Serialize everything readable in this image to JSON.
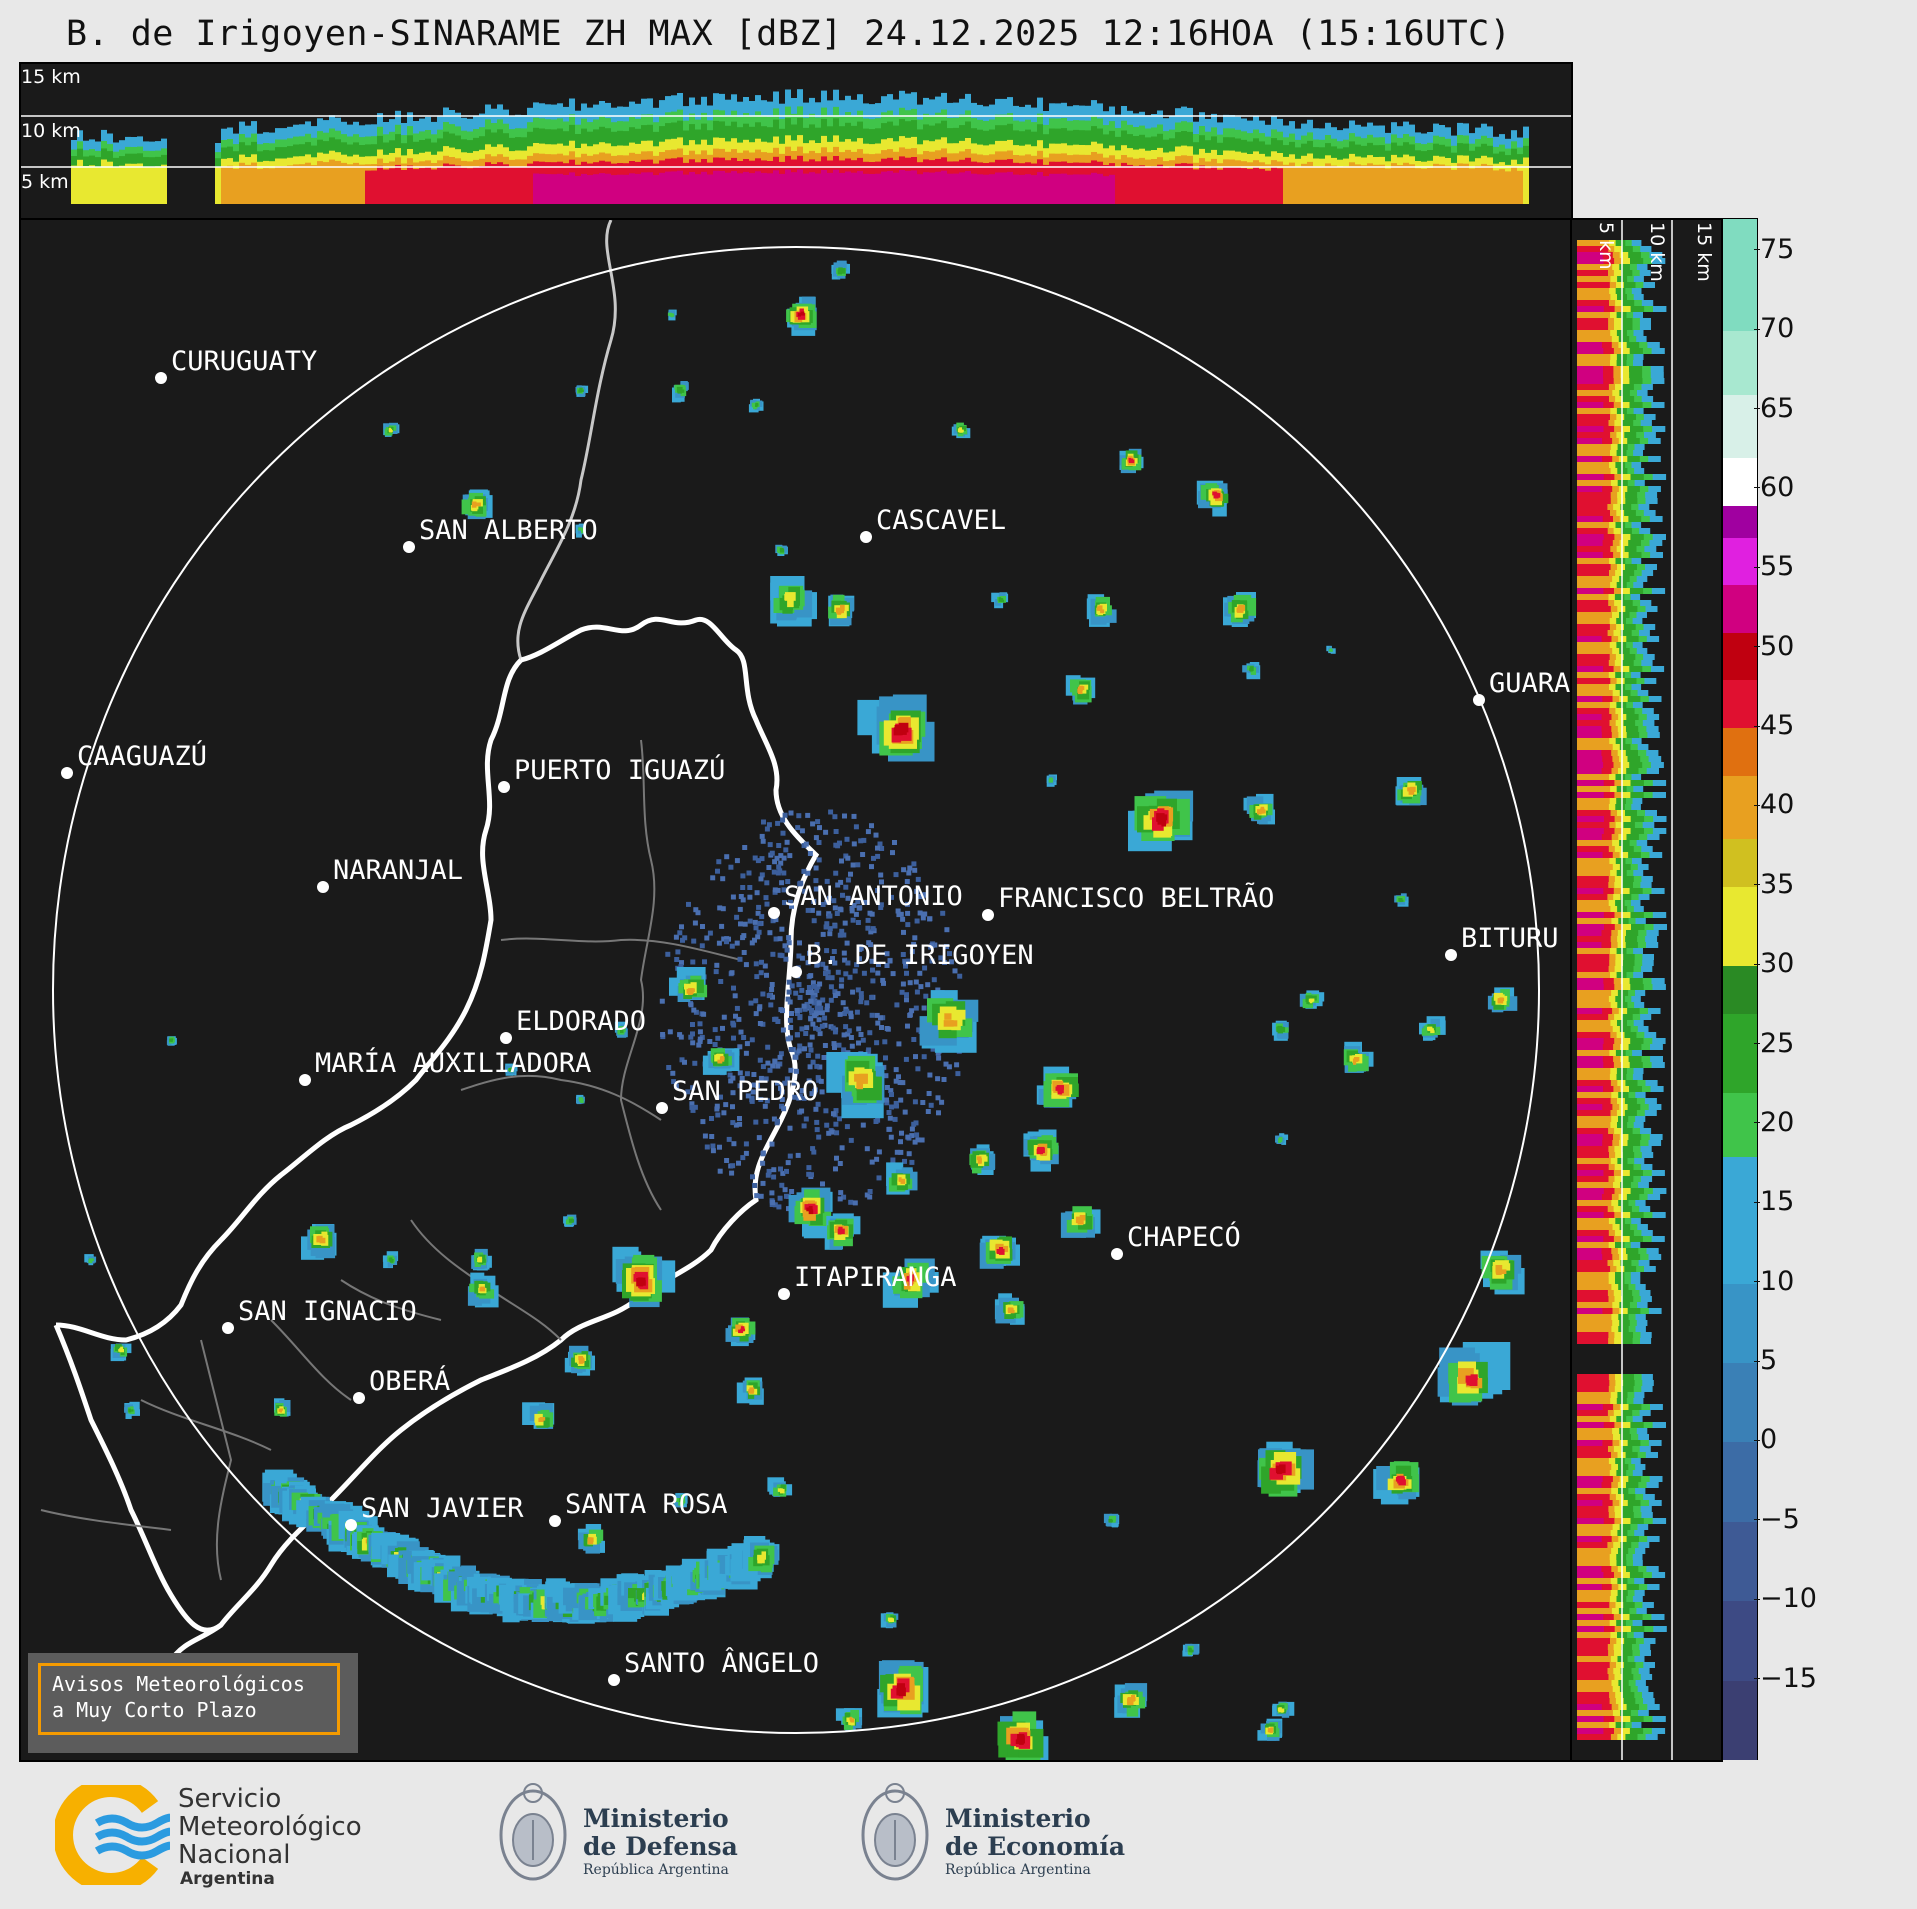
{
  "title": "B. de Irigoyen-SINARAME ZH MAX [dBZ] 24.12.2025 12:16HOA (15:16UTC)",
  "height_labels": {
    "h15": "15 km",
    "h10": "10 km",
    "h5": "5 km"
  },
  "cities": [
    {
      "name": "CURUGUATY"
    },
    {
      "name": "SAN ALBERTO"
    },
    {
      "name": "CASCAVEL"
    },
    {
      "name": "CAAGUAZÚ"
    },
    {
      "name": "GUARA"
    },
    {
      "name": "PUERTO IGUAZÚ"
    },
    {
      "name": "NARANJAL"
    },
    {
      "name": "SAN ANTONIO"
    },
    {
      "name": "FRANCISCO BELTRÃO"
    },
    {
      "name": "BITURU"
    },
    {
      "name": "B. DE IRIGOYEN"
    },
    {
      "name": "ELDORADO"
    },
    {
      "name": "MARÍA AUXILIADORA"
    },
    {
      "name": "SAN PEDRO"
    },
    {
      "name": "CHAPECÓ"
    },
    {
      "name": "ITAPIRANGA"
    },
    {
      "name": "SAN IGNACIO"
    },
    {
      "name": "OBERÁ"
    },
    {
      "name": "SAN JAVIER"
    },
    {
      "name": "SANTA ROSA"
    },
    {
      "name": "SANTO ÂNGELO"
    }
  ],
  "colorbar": {
    "min": -20,
    "max": 77,
    "ticks": [
      "75",
      "70",
      "65",
      "60",
      "55",
      "50",
      "45",
      "40",
      "35",
      "30",
      "25",
      "20",
      "15",
      "10",
      "5",
      "0",
      "−5",
      "−10",
      "−15"
    ],
    "tick_values": [
      75,
      70,
      65,
      60,
      55,
      50,
      45,
      40,
      35,
      30,
      25,
      20,
      15,
      10,
      5,
      0,
      -5,
      -10,
      -15
    ],
    "colors": [
      "#3b3f72",
      "#3d4a84",
      "#3e5a95",
      "#3c6ca6",
      "#3a80b6",
      "#3894c6",
      "#3aa8d6",
      "#40c44a",
      "#2fa52a",
      "#2a8a24",
      "#e8e830",
      "#d0c020",
      "#e8a020",
      "#e07010",
      "#e01030",
      "#c00010",
      "#d00080",
      "#e020e0",
      "#a000a0",
      "#ffffff",
      "#d8f0e8",
      "#a8e8d0",
      "#80dcc0"
    ],
    "color_stops": [
      -20,
      -15,
      -10,
      -5,
      0,
      5,
      10,
      18,
      22,
      27,
      30,
      35,
      38,
      42,
      45,
      48,
      51,
      54,
      57,
      59,
      62,
      66,
      70,
      77
    ]
  },
  "notice": {
    "line1": "Avisos Meteorológicos",
    "line2": "a Muy Corto Plazo"
  },
  "footer": {
    "smn": {
      "line1": "Servicio",
      "line2": "Meteorológico",
      "line3": "Nacional",
      "line4": "Argentina"
    },
    "defensa": {
      "line1": "Ministerio",
      "line2": "de Defensa",
      "line3": "República Argentina"
    },
    "economia": {
      "line1": "Ministerio",
      "line2": "de Economía",
      "line3": "República Argentina"
    }
  },
  "colors": {
    "background": "#1a1a1a",
    "ring": "#ffffff",
    "border": "#f59b00"
  }
}
